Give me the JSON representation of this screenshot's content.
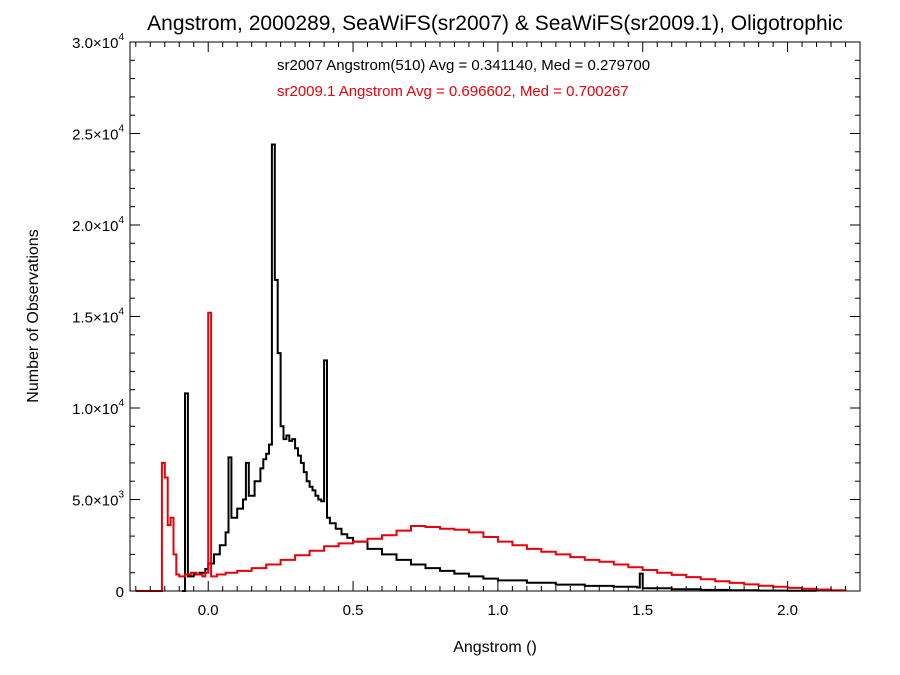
{
  "chart_data": {
    "type": "histogram",
    "title": "Angstrom, 2000289, SeaWiFS(sr2007) & SeaWiFS(sr2009.1), Oligotrophic",
    "xlabel": "Angstrom ()",
    "ylabel": "Number of Observations",
    "xlim": [
      -0.27,
      2.25
    ],
    "ylim": [
      0,
      30000
    ],
    "x_ticks": [
      0.0,
      0.5,
      1.0,
      1.5,
      2.0
    ],
    "x_tick_labels": [
      "0.0",
      "0.5",
      "1.0",
      "1.5",
      "2.0"
    ],
    "y_ticks": [
      {
        "value": 0,
        "mantissa": "0",
        "exp": ""
      },
      {
        "value": 5000,
        "mantissa": "5.0×10",
        "exp": "3"
      },
      {
        "value": 10000,
        "mantissa": "1.0×10",
        "exp": "4"
      },
      {
        "value": 15000,
        "mantissa": "1.5×10",
        "exp": "4"
      },
      {
        "value": 20000,
        "mantissa": "2.0×10",
        "exp": "4"
      },
      {
        "value": 25000,
        "mantissa": "2.5×10",
        "exp": "4"
      },
      {
        "value": 30000,
        "mantissa": "3.0×10",
        "exp": "4"
      }
    ],
    "annotations": [
      {
        "text": "sr2007 Angstrom(510) Avg = 0.341140, Med = 0.279700",
        "color": "#000000"
      },
      {
        "text": "sr2009.1 Angstrom Avg = 0.696602, Med = 0.700267",
        "color": "#e8000b"
      }
    ],
    "series": [
      {
        "name": "sr2007",
        "color": "#000000",
        "points": [
          [
            -0.09,
            0
          ],
          [
            -0.08,
            10800
          ],
          [
            -0.07,
            800
          ],
          [
            -0.05,
            900
          ],
          [
            -0.03,
            1000
          ],
          [
            -0.01,
            1200
          ],
          [
            0.0,
            1500
          ],
          [
            0.02,
            2000
          ],
          [
            0.04,
            2500
          ],
          [
            0.06,
            3200
          ],
          [
            0.07,
            7300
          ],
          [
            0.08,
            4000
          ],
          [
            0.1,
            4500
          ],
          [
            0.12,
            5000
          ],
          [
            0.13,
            7000
          ],
          [
            0.14,
            5200
          ],
          [
            0.16,
            6000
          ],
          [
            0.18,
            6700
          ],
          [
            0.19,
            7200
          ],
          [
            0.2,
            7500
          ],
          [
            0.21,
            8000
          ],
          [
            0.22,
            24400
          ],
          [
            0.23,
            17000
          ],
          [
            0.24,
            13000
          ],
          [
            0.25,
            9000
          ],
          [
            0.26,
            8300
          ],
          [
            0.27,
            8500
          ],
          [
            0.28,
            8200
          ],
          [
            0.29,
            8300
          ],
          [
            0.3,
            7800
          ],
          [
            0.31,
            7400
          ],
          [
            0.32,
            7000
          ],
          [
            0.33,
            6500
          ],
          [
            0.34,
            6000
          ],
          [
            0.35,
            5700
          ],
          [
            0.36,
            5500
          ],
          [
            0.37,
            5200
          ],
          [
            0.38,
            5000
          ],
          [
            0.39,
            4900
          ],
          [
            0.4,
            12600
          ],
          [
            0.41,
            4000
          ],
          [
            0.42,
            3700
          ],
          [
            0.44,
            3400
          ],
          [
            0.46,
            3100
          ],
          [
            0.48,
            2900
          ],
          [
            0.5,
            2700
          ],
          [
            0.55,
            2300
          ],
          [
            0.6,
            2000
          ],
          [
            0.65,
            1700
          ],
          [
            0.7,
            1450
          ],
          [
            0.75,
            1250
          ],
          [
            0.8,
            1100
          ],
          [
            0.85,
            950
          ],
          [
            0.9,
            800
          ],
          [
            0.95,
            680
          ],
          [
            1.0,
            580
          ],
          [
            1.1,
            450
          ],
          [
            1.2,
            350
          ],
          [
            1.3,
            280
          ],
          [
            1.4,
            230
          ],
          [
            1.48,
            190
          ],
          [
            1.49,
            950
          ],
          [
            1.5,
            150
          ],
          [
            1.6,
            100
          ],
          [
            1.7,
            60
          ],
          [
            1.8,
            40
          ],
          [
            1.9,
            20
          ],
          [
            2.0,
            10
          ],
          [
            2.1,
            0
          ]
        ]
      },
      {
        "name": "sr2009.1",
        "color": "#e8000b",
        "points": [
          [
            -0.25,
            0
          ],
          [
            -0.165,
            0
          ],
          [
            -0.16,
            7000
          ],
          [
            -0.15,
            6200
          ],
          [
            -0.14,
            3600
          ],
          [
            -0.13,
            4000
          ],
          [
            -0.12,
            2000
          ],
          [
            -0.11,
            900
          ],
          [
            -0.1,
            800
          ],
          [
            -0.08,
            900
          ],
          [
            -0.06,
            1000
          ],
          [
            -0.04,
            900
          ],
          [
            -0.02,
            800
          ],
          [
            -0.01,
            1000
          ],
          [
            0.0,
            15200
          ],
          [
            0.01,
            800
          ],
          [
            0.03,
            900
          ],
          [
            0.06,
            1000
          ],
          [
            0.1,
            1100
          ],
          [
            0.15,
            1250
          ],
          [
            0.2,
            1450
          ],
          [
            0.25,
            1700
          ],
          [
            0.3,
            1950
          ],
          [
            0.35,
            2200
          ],
          [
            0.4,
            2450
          ],
          [
            0.45,
            2600
          ],
          [
            0.5,
            2700
          ],
          [
            0.55,
            2850
          ],
          [
            0.6,
            3050
          ],
          [
            0.65,
            3300
          ],
          [
            0.7,
            3550
          ],
          [
            0.75,
            3500
          ],
          [
            0.8,
            3400
          ],
          [
            0.85,
            3350
          ],
          [
            0.9,
            3200
          ],
          [
            0.95,
            2950
          ],
          [
            1.0,
            2700
          ],
          [
            1.05,
            2500
          ],
          [
            1.1,
            2300
          ],
          [
            1.15,
            2150
          ],
          [
            1.2,
            2000
          ],
          [
            1.25,
            1850
          ],
          [
            1.3,
            1700
          ],
          [
            1.35,
            1600
          ],
          [
            1.4,
            1450
          ],
          [
            1.45,
            1300
          ],
          [
            1.5,
            1150
          ],
          [
            1.55,
            1000
          ],
          [
            1.6,
            880
          ],
          [
            1.65,
            760
          ],
          [
            1.7,
            640
          ],
          [
            1.75,
            530
          ],
          [
            1.8,
            440
          ],
          [
            1.85,
            360
          ],
          [
            1.9,
            290
          ],
          [
            1.95,
            230
          ],
          [
            2.0,
            170
          ],
          [
            2.05,
            120
          ],
          [
            2.1,
            80
          ],
          [
            2.15,
            40
          ],
          [
            2.2,
            0
          ]
        ]
      }
    ]
  }
}
